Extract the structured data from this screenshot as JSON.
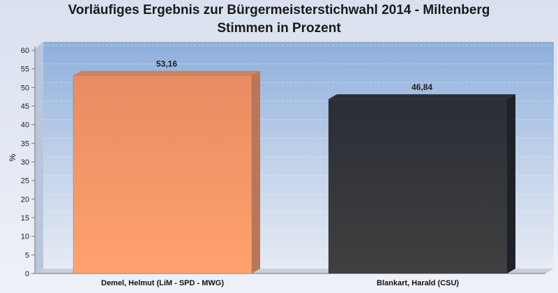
{
  "chart_data": {
    "type": "bar",
    "title": "Vorläufiges Ergebnis zur Bürgermeisterstichwahl 2014 - Miltenberg",
    "subtitle": "Stimmen in Prozent",
    "xlabel": "",
    "ylabel": "%",
    "ylim": [
      0,
      60
    ],
    "yticks": [
      0,
      5,
      10,
      15,
      20,
      25,
      30,
      35,
      40,
      45,
      50,
      55,
      60
    ],
    "categories": [
      "Demel, Helmut (LiM - SPD - MWG)",
      "Blankart, Harald (CSU)"
    ],
    "values": [
      53.16,
      46.84
    ],
    "value_labels": [
      "53,16",
      "46,84"
    ],
    "bar_colors": [
      "#f59a6a",
      "#34363b"
    ],
    "grid": true,
    "legend": "none"
  }
}
